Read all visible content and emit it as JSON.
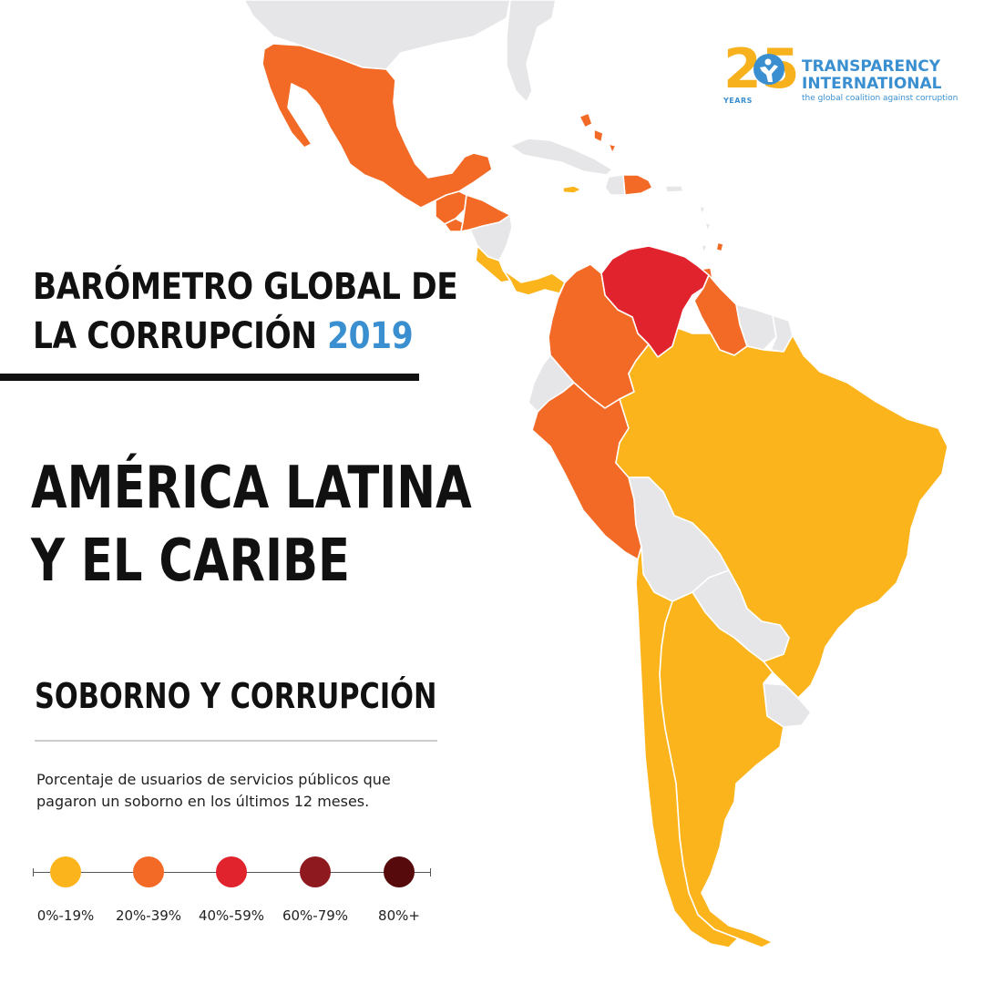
{
  "header": {
    "title_line1": "BARÓMETRO GLOBAL DE",
    "title_line2_prefix": "LA CORRUPCIÓN ",
    "title_year": "2019"
  },
  "region": {
    "line1": "AMÉRICA LATINA",
    "line2": "Y EL CARIBE"
  },
  "section": {
    "title": "SOBORNO Y CORRUPCIÓN",
    "description": "Porcentaje de usuarios de servicios públicos que pagaron un soborno en los últimos 12 meses."
  },
  "legend": [
    {
      "label": "0%-19%",
      "color": "#fbb41c"
    },
    {
      "label": "20%-39%",
      "color": "#f26a25"
    },
    {
      "label": "40%-59%",
      "color": "#e0232c"
    },
    {
      "label": "60%-79%",
      "color": "#8e1a1f"
    },
    {
      "label": "80%+",
      "color": "#560a0c"
    }
  ],
  "no_data_color": "#e6e6e8",
  "logo": {
    "number": "25",
    "years": "YEARS",
    "name_line1": "TRANSPARENCY",
    "name_line2": "INTERNATIONAL",
    "tagline": "the global coalition against corruption",
    "color": "#3a8fd0",
    "accent": "#f6b11c"
  },
  "countries": [
    {
      "name": "Mexico",
      "bracket": "20%-39%"
    },
    {
      "name": "Guatemala",
      "bracket": "20%-39%"
    },
    {
      "name": "Honduras",
      "bracket": "20%-39%"
    },
    {
      "name": "El Salvador",
      "bracket": "20%-39%"
    },
    {
      "name": "Nicaragua",
      "bracket": "no-data"
    },
    {
      "name": "Costa Rica",
      "bracket": "0%-19%"
    },
    {
      "name": "Panama",
      "bracket": "0%-19%"
    },
    {
      "name": "Colombia",
      "bracket": "20%-39%"
    },
    {
      "name": "Venezuela",
      "bracket": "40%-59%"
    },
    {
      "name": "Guyana",
      "bracket": "20%-39%"
    },
    {
      "name": "Suriname",
      "bracket": "no-data"
    },
    {
      "name": "Ecuador",
      "bracket": "no-data"
    },
    {
      "name": "Peru",
      "bracket": "20%-39%"
    },
    {
      "name": "Brazil",
      "bracket": "0%-19%"
    },
    {
      "name": "Bolivia",
      "bracket": "no-data"
    },
    {
      "name": "Paraguay",
      "bracket": "no-data"
    },
    {
      "name": "Chile",
      "bracket": "0%-19%"
    },
    {
      "name": "Argentina",
      "bracket": "0%-19%"
    },
    {
      "name": "Uruguay",
      "bracket": "no-data"
    },
    {
      "name": "Cuba",
      "bracket": "no-data"
    },
    {
      "name": "Jamaica",
      "bracket": "0%-19%"
    },
    {
      "name": "Dominican Republic",
      "bracket": "20%-39%"
    },
    {
      "name": "Bahamas",
      "bracket": "20%-39%"
    },
    {
      "name": "Barbados",
      "bracket": "20%-39%"
    },
    {
      "name": "Trinidad and Tobago",
      "bracket": "20%-39%"
    }
  ]
}
